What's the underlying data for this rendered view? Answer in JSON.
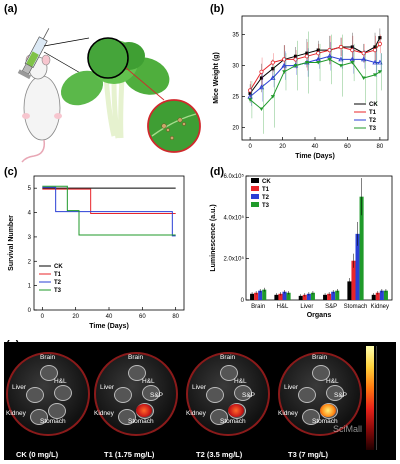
{
  "panels": {
    "a": "(a)",
    "b": "(b)",
    "c": "(c)",
    "d": "(d)",
    "e": "(e)"
  },
  "colors": {
    "CK": "#000000",
    "T1": "#e8252a",
    "T2": "#2a3fd6",
    "T3": "#1f9a2a"
  },
  "chart_data": [
    {
      "type": "line",
      "panel": "b",
      "xlabel": "Time (Days)",
      "ylabel": "Mice Weight (g)",
      "xlim": [
        -5,
        85
      ],
      "ylim": [
        18,
        38
      ],
      "xticks": [
        0,
        20,
        40,
        60,
        80
      ],
      "yticks": [
        20,
        25,
        30,
        35
      ],
      "legend_position": "bottom-right",
      "x": [
        0,
        7,
        14,
        21,
        28,
        35,
        42,
        49,
        56,
        63,
        70,
        77,
        80
      ],
      "series": [
        {
          "name": "CK",
          "values": [
            25.5,
            28,
            29.5,
            31,
            31.5,
            32,
            32.5,
            32.5,
            33,
            33,
            32,
            33,
            34.5
          ]
        },
        {
          "name": "T1",
          "values": [
            26,
            29,
            30.5,
            31,
            31,
            31.5,
            32,
            32.5,
            33,
            32.5,
            32,
            32.5,
            33.5
          ]
        },
        {
          "name": "T2",
          "values": [
            25,
            26.5,
            28,
            30,
            30,
            30.5,
            31,
            31.5,
            31,
            31,
            31,
            30.5,
            30.5
          ]
        },
        {
          "name": "T3",
          "values": [
            24.5,
            23,
            25,
            29,
            30,
            30.5,
            30.5,
            31,
            30,
            30.5,
            28,
            28.5,
            29
          ]
        }
      ]
    },
    {
      "type": "line",
      "panel": "c",
      "xlabel": "Time (Days)",
      "ylabel": "Survival Number",
      "xlim": [
        -5,
        85
      ],
      "ylim": [
        0,
        5.5
      ],
      "xticks": [
        0,
        20,
        40,
        60,
        80
      ],
      "yticks": [
        0,
        1,
        2,
        3,
        4,
        5
      ],
      "legend_position": "bottom-left",
      "series": [
        {
          "name": "CK",
          "steps": [
            [
              0,
              5
            ],
            [
              80,
              5
            ]
          ]
        },
        {
          "name": "T1",
          "steps": [
            [
              0,
              5
            ],
            [
              29,
              5
            ],
            [
              29,
              4
            ],
            [
              80,
              4
            ]
          ]
        },
        {
          "name": "T2",
          "steps": [
            [
              0,
              5
            ],
            [
              8,
              5
            ],
            [
              8,
              4
            ],
            [
              78,
              4
            ],
            [
              78,
              3
            ],
            [
              80,
              3
            ]
          ]
        },
        {
          "name": "T3",
          "steps": [
            [
              0,
              5
            ],
            [
              15,
              5
            ],
            [
              15,
              4
            ],
            [
              22,
              4
            ],
            [
              22,
              3
            ],
            [
              80,
              3
            ]
          ]
        }
      ]
    },
    {
      "type": "bar",
      "panel": "d",
      "xlabel": "Organs",
      "ylabel": "Luminescence (a.u.)",
      "ylim": [
        0,
        6
      ],
      "ytick_labels": [
        "0",
        "2.0x10⁵",
        "4.0x10⁵",
        "6.0x10⁵"
      ],
      "categories": [
        "Brain",
        "H&L",
        "Liver",
        "S&P",
        "Stomach",
        "Kidney"
      ],
      "legend_position": "top-left",
      "series": [
        {
          "name": "CK",
          "values": [
            0.3,
            0.25,
            0.2,
            0.25,
            0.9,
            0.25
          ]
        },
        {
          "name": "T1",
          "values": [
            0.35,
            0.3,
            0.25,
            0.3,
            1.9,
            0.35
          ]
        },
        {
          "name": "T2",
          "values": [
            0.45,
            0.4,
            0.3,
            0.4,
            3.2,
            0.45
          ]
        },
        {
          "name": "T3",
          "values": [
            0.5,
            0.35,
            0.35,
            0.45,
            5.0,
            0.45
          ]
        }
      ]
    }
  ],
  "panel_e": {
    "dishes": [
      {
        "caption": "CK (0 mg/L)",
        "labels": [
          "Brain",
          "Liver",
          "H&L",
          "Kidney",
          "Stomach"
        ]
      },
      {
        "caption": "T1 (1.75 mg/L)",
        "labels": [
          "Brain",
          "Liver",
          "H&L",
          "S&P",
          "Kidney",
          "Stomach"
        ]
      },
      {
        "caption": "T2 (3.5 mg/L)",
        "labels": [
          "Brain",
          "Liver",
          "H&L",
          "S&P",
          "Kidney",
          "Stomach"
        ]
      },
      {
        "caption": "T3 (7 mg/L)",
        "labels": [
          "Brain",
          "Liver",
          "H&L",
          "S&P",
          "Stomach",
          "Kidney"
        ]
      }
    ],
    "watermark": "SciMall"
  }
}
